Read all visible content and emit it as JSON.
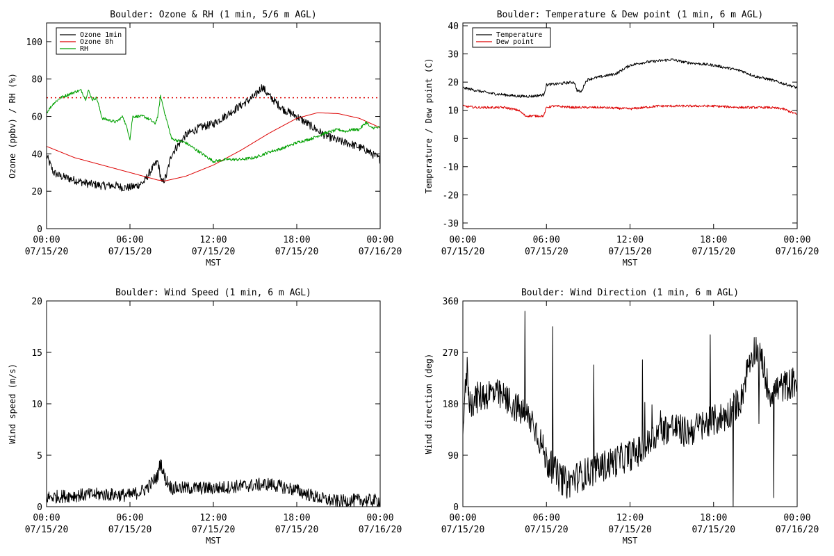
{
  "x_ticks": [
    {
      "hour": 0,
      "time": "00:00",
      "date": "07/15/20"
    },
    {
      "hour": 6,
      "time": "06:00",
      "date": "07/15/20"
    },
    {
      "hour": 12,
      "time": "12:00",
      "date": "07/15/20"
    },
    {
      "hour": 18,
      "time": "18:00",
      "date": "07/15/20"
    },
    {
      "hour": 24,
      "time": "00:00",
      "date": "07/16/20"
    }
  ],
  "chart_data": [
    {
      "type": "line",
      "title": "Boulder: Ozone & RH (1 min, 5/6 m AGL)",
      "xlabel": "MST",
      "ylabel": "Ozone (ppbv) / RH (%)",
      "xlim": [
        0,
        24
      ],
      "ylim": [
        0,
        110
      ],
      "yticks": [
        0,
        20,
        40,
        60,
        80,
        100
      ],
      "legend": {
        "position": "top-left",
        "entries": [
          "Ozone 1min",
          "Ozone 8h",
          "RH"
        ]
      },
      "reference_line": {
        "y": 70,
        "style": "dotted",
        "color": "#dd0000"
      },
      "series": [
        {
          "name": "Ozone 1min",
          "color": "#000000",
          "noise": 2.2,
          "x": [
            0,
            0.5,
            1,
            2,
            3,
            4,
            5,
            5.5,
            6,
            6.5,
            7,
            7.5,
            8,
            8.3,
            8.6,
            9,
            10,
            11,
            12,
            13,
            14,
            15,
            15.5,
            16,
            17,
            18,
            19,
            20,
            21,
            22,
            23,
            24
          ],
          "y": [
            39,
            30,
            28,
            26,
            24,
            23,
            23,
            22,
            22,
            23,
            25,
            31,
            36,
            24,
            28,
            40,
            50,
            54,
            56,
            61,
            66,
            71,
            76,
            71,
            64,
            60,
            55,
            50,
            47,
            45,
            42,
            37
          ]
        },
        {
          "name": "Ozone 8h",
          "color": "#dd0000",
          "noise": 0,
          "x": [
            0,
            2,
            4,
            6,
            8,
            8.5,
            10,
            12,
            14,
            16,
            18,
            19.5,
            21,
            22.5,
            24
          ],
          "y": [
            44,
            38,
            34,
            30,
            26,
            25.5,
            28,
            34,
            42,
            51,
            59,
            62,
            61.5,
            59,
            54
          ]
        },
        {
          "name": "RH",
          "color": "#00a000",
          "noise": 0.8,
          "x": [
            0,
            0.5,
            1,
            2,
            2.5,
            2.8,
            3,
            3.3,
            3.6,
            4,
            5,
            5.5,
            5.9,
            6,
            6.2,
            7,
            7.5,
            7.8,
            8,
            8.2,
            8.5,
            9,
            9.5,
            10,
            11,
            12,
            13,
            14,
            15,
            16,
            17,
            18,
            19,
            20,
            21,
            21.5,
            22,
            22.5,
            23,
            23.3,
            24
          ],
          "y": [
            62,
            67,
            70,
            73,
            74,
            69,
            74,
            69,
            70,
            59,
            57,
            60,
            51,
            48,
            60,
            60,
            58,
            56,
            60,
            71,
            62,
            48,
            47,
            46,
            41,
            36,
            37,
            37,
            38,
            41,
            43,
            46,
            48,
            51,
            53,
            52,
            53,
            53,
            57,
            54,
            54
          ]
        }
      ]
    },
    {
      "type": "line",
      "title": "Boulder: Temperature & Dew point (1 min, 6 m AGL)",
      "xlabel": "MST",
      "ylabel": "Temperature / Dew point (C)",
      "xlim": [
        0,
        24
      ],
      "ylim": [
        -32,
        41
      ],
      "yticks": [
        -30,
        -20,
        -10,
        0,
        10,
        20,
        30,
        40
      ],
      "legend": {
        "position": "top-left",
        "entries": [
          "Temperature",
          "Dew point"
        ]
      },
      "series": [
        {
          "name": "Temperature",
          "color": "#000000",
          "noise": 0.5,
          "x": [
            0,
            1,
            2,
            3,
            4,
            5,
            5.8,
            6,
            7,
            8,
            8.2,
            8.5,
            8.8,
            9,
            10,
            11,
            12,
            13,
            14,
            15,
            16,
            17,
            18,
            19,
            20,
            21,
            22,
            23,
            24
          ],
          "y": [
            18,
            17,
            16,
            15.5,
            15,
            15,
            15.5,
            19,
            19.5,
            20,
            17,
            16.5,
            20,
            21,
            22,
            23,
            26,
            27,
            27.5,
            28,
            27,
            26.5,
            26,
            25,
            24,
            22,
            21,
            19.5,
            18
          ]
        },
        {
          "name": "Dew point",
          "color": "#dd0000",
          "noise": 0.4,
          "x": [
            0,
            1,
            2,
            3,
            4,
            4.5,
            5,
            5.8,
            6,
            6.5,
            8,
            10,
            12,
            13,
            14,
            16,
            18,
            20,
            22,
            23,
            24
          ],
          "y": [
            11.5,
            11,
            11,
            11,
            10,
            8,
            8,
            8,
            11,
            11.5,
            11,
            11,
            10.5,
            11,
            11.5,
            11.5,
            11.5,
            11,
            11,
            10.5,
            8.5
          ]
        }
      ]
    },
    {
      "type": "line",
      "title": "Boulder: Wind Speed (1 min, 6 m AGL)",
      "xlabel": "MST",
      "ylabel": "Wind speed (m/s)",
      "xlim": [
        0,
        24
      ],
      "ylim": [
        0,
        20
      ],
      "yticks": [
        0,
        5,
        10,
        15,
        20
      ],
      "series": [
        {
          "color": "#000000",
          "noise": 0.65,
          "x": [
            0,
            2,
            4,
            6,
            7,
            7.5,
            8,
            8.2,
            8.5,
            9,
            10,
            12,
            14,
            16,
            18,
            19,
            20,
            21,
            22,
            23,
            24
          ],
          "y": [
            0.9,
            1.1,
            1.2,
            1.1,
            1.6,
            2.2,
            3,
            4.4,
            2.8,
            1.8,
            1.8,
            1.8,
            2,
            2.2,
            1.6,
            1.1,
            0.7,
            0.5,
            0.6,
            0.6,
            0.6
          ]
        }
      ]
    },
    {
      "type": "line",
      "title": "Boulder: Wind Direction (1 min, 6 m AGL)",
      "xlabel": "MST",
      "ylabel": "Wind direction (deg)",
      "xlim": [
        0,
        24
      ],
      "ylim": [
        0,
        360
      ],
      "yticks": [
        0,
        90,
        180,
        270,
        360
      ],
      "series": [
        {
          "color": "#000000",
          "noise": 28,
          "x": [
            0,
            0.3,
            0.5,
            1,
            2,
            3,
            4,
            5,
            5.5,
            6,
            7,
            7.5,
            8,
            9,
            10,
            11,
            12,
            13,
            14,
            15,
            16,
            17,
            18,
            19,
            20,
            20.5,
            21,
            21.5,
            22,
            23,
            24
          ],
          "y": [
            140,
            240,
            180,
            190,
            200,
            190,
            170,
            150,
            120,
            80,
            50,
            40,
            50,
            60,
            70,
            80,
            90,
            100,
            130,
            140,
            130,
            140,
            150,
            160,
            190,
            250,
            280,
            250,
            200,
            210,
            220
          ]
        }
      ]
    }
  ]
}
